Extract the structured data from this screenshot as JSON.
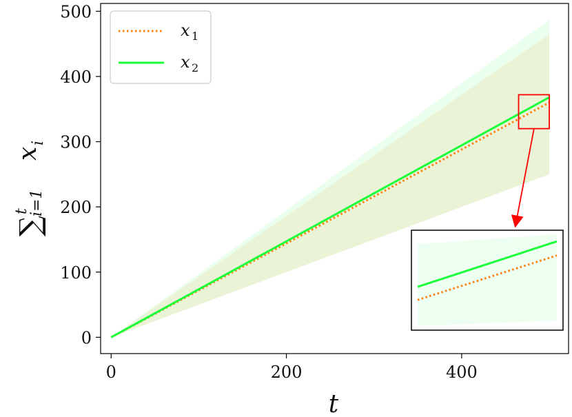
{
  "chart_data": {
    "type": "line",
    "xlabel": "t",
    "ylabel_sum_symbol": "∑",
    "ylabel_upper": "t",
    "ylabel_lower": "i=1",
    "ylabel_var": "x",
    "ylabel_var_sub": "i",
    "xlim": [
      -12,
      522
    ],
    "ylim": [
      -25,
      512
    ],
    "xticks": [
      0,
      200,
      400
    ],
    "yticks": [
      0,
      100,
      200,
      300,
      400,
      500
    ],
    "legend_location": "top-left",
    "series": [
      {
        "name": "x",
        "name_sub": "1",
        "style": "dotted",
        "color": "#ff7f0e",
        "x": [
          0,
          500
        ],
        "y": [
          0,
          360
        ],
        "band_upper": [
          0,
          465
        ],
        "band_lower": [
          0,
          250
        ]
      },
      {
        "name": "x",
        "name_sub": "2",
        "style": "solid",
        "color": "#1aff3a",
        "x": [
          0,
          500
        ],
        "y": [
          0,
          368
        ],
        "band_upper": [
          0,
          487
        ],
        "band_lower": [
          0,
          250
        ]
      }
    ],
    "inset": {
      "xlim": [
        465,
        500
      ],
      "ylim": [
        320,
        372
      ],
      "border_color": "#ff0000"
    }
  }
}
